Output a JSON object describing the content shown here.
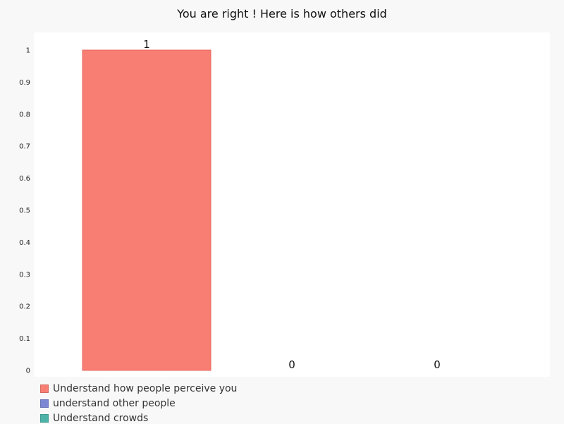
{
  "chart_data": {
    "type": "bar",
    "title": "You are right ! Here is how others did",
    "categories": [
      "Understand how people perceive you",
      "understand other people",
      "Understand crowds"
    ],
    "values": [
      1,
      0,
      0
    ],
    "data_labels": [
      "1",
      "0",
      "0"
    ],
    "colors": [
      "#f87e73",
      "#7b87d4",
      "#4db3a8"
    ],
    "ylim": [
      0,
      1
    ],
    "yticks": [
      "0",
      "0.1",
      "0.2",
      "0.3",
      "0.4",
      "0.5",
      "0.6",
      "0.7",
      "0.8",
      "0.9",
      "1"
    ],
    "grid": false,
    "legend_position": "bottom"
  }
}
